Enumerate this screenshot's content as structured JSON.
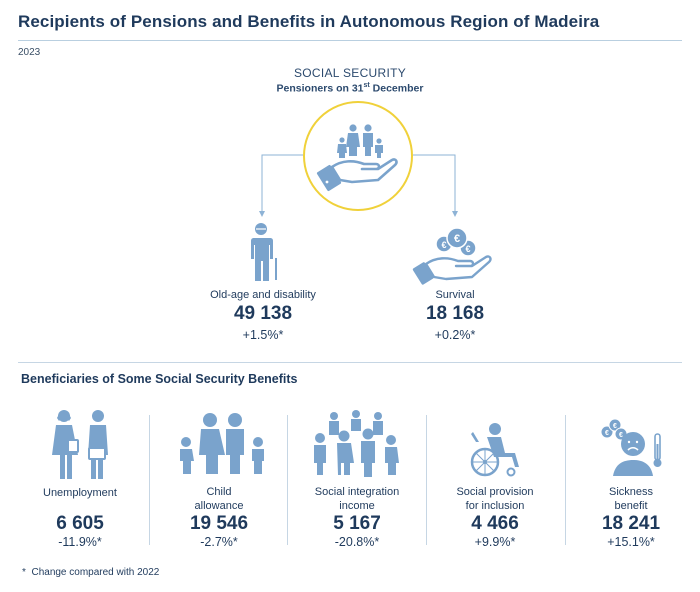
{
  "title": "Recipients of Pensions and Benefits in Autonomous Region of Madeira",
  "year": "2023",
  "social_security": {
    "heading": "SOCIAL SECURITY",
    "subheading_main": "Pensioners on 31",
    "subheading_sup": "st",
    "subheading_end": " December",
    "icon": "hand-holding-family-icon"
  },
  "pensions": [
    {
      "label": "Old-age and disability",
      "value": "49 138",
      "change": "+1.5%*",
      "icon": "elderly-person-icon"
    },
    {
      "label": "Survival",
      "value": "18 168",
      "change": "+0.2%*",
      "icon": "hand-holding-coins-icon"
    }
  ],
  "benefits_heading": "Beneficiaries of Some Social Security Benefits",
  "benefits": [
    {
      "label_line1": "Unemployment",
      "label_line2": "",
      "value": "6 605",
      "change": "-11.9%*",
      "icon": "unemployed-people-icon"
    },
    {
      "label_line1": "Child",
      "label_line2": "allowance",
      "value": "19 546",
      "change": "-2.7%*",
      "icon": "family-icon"
    },
    {
      "label_line1": "Social integration",
      "label_line2": "income",
      "value": "5 167",
      "change": "-20.8%*",
      "icon": "community-group-icon"
    },
    {
      "label_line1": "Social provision",
      "label_line2": "for inclusion",
      "value": "4 466",
      "change": "+9.9%*",
      "icon": "wheelchair-user-icon"
    },
    {
      "label_line1": "Sickness",
      "label_line2": "benefit",
      "value": "18 241",
      "change": "+15.1%*",
      "icon": "sick-person-thermometer-icon"
    }
  ],
  "footnote_marker": "*",
  "footnote": "Change compared with 2022",
  "colors": {
    "navy": "#1f3a5c",
    "icon_blue": "#7aa3cc",
    "accent_yellow": "#f0d13a",
    "rule": "#c6d6e4"
  }
}
